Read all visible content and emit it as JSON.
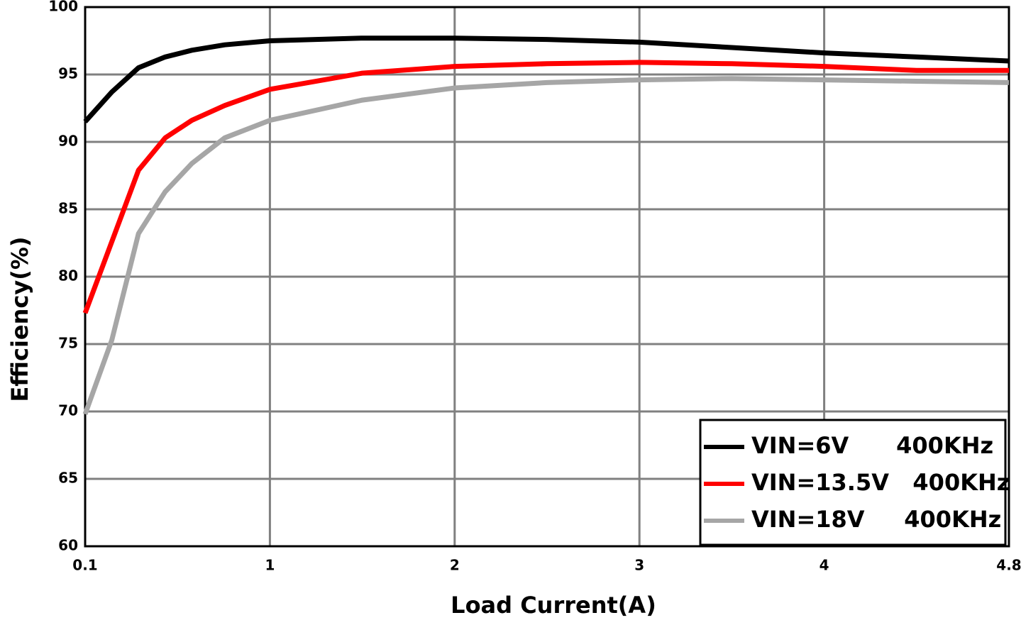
{
  "chart_data": {
    "type": "line",
    "xlabel": "Load Current(A)",
    "ylabel": "Efficiency(%)",
    "x": [
      0.1,
      0.23,
      0.36,
      0.49,
      0.62,
      0.78,
      1,
      1.5,
      2,
      2.5,
      3,
      3.5,
      4,
      4.4,
      4.8
    ],
    "series": [
      {
        "name": "VIN=6V      400KHz",
        "color": "#000000",
        "values": [
          91.5,
          93.7,
          95.5,
          96.3,
          96.8,
          97.2,
          97.5,
          97.7,
          97.7,
          97.6,
          97.4,
          97.0,
          96.6,
          96.3,
          96.0
        ]
      },
      {
        "name": "VIN=13.5V   400KHz",
        "color": "#ff0000",
        "values": [
          77.3,
          82.6,
          87.9,
          90.3,
          91.6,
          92.7,
          93.9,
          95.1,
          95.6,
          95.8,
          95.9,
          95.8,
          95.6,
          95.3,
          95.3
        ]
      },
      {
        "name": "VIN=18V     400KHz",
        "color": "#a6a6a6",
        "values": [
          69.8,
          75.3,
          83.2,
          86.3,
          88.4,
          90.3,
          91.6,
          93.1,
          94.0,
          94.4,
          94.6,
          94.7,
          94.6,
          94.5,
          94.4
        ]
      }
    ],
    "xlim": [
      0.1,
      4.8
    ],
    "xticks": [
      0.1,
      1,
      2,
      3,
      4,
      4.8
    ],
    "ylim": [
      60,
      100
    ],
    "yticks": [
      60,
      65,
      70,
      75,
      80,
      85,
      90,
      95,
      100
    ],
    "grid": true,
    "legend": "lower right"
  }
}
